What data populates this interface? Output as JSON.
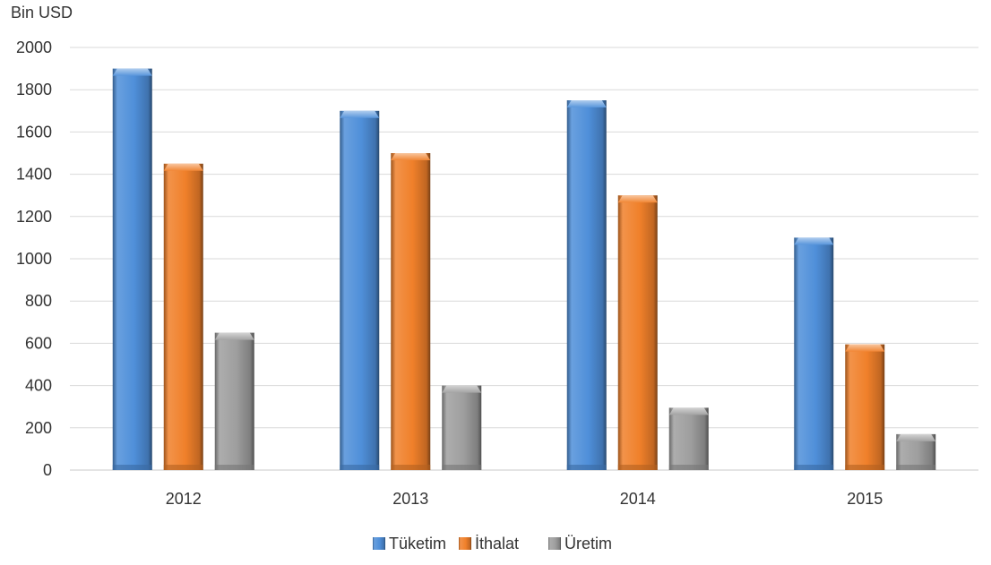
{
  "chart_data": {
    "type": "bar",
    "ylabel": "Bin USD",
    "categories": [
      "2012",
      "2013",
      "2014",
      "2015"
    ],
    "series": [
      {
        "name": "Tüketim",
        "values": [
          1900,
          1700,
          1750,
          1100
        ],
        "color": "#4F8FD9"
      },
      {
        "name": "İthalat",
        "values": [
          1450,
          1500,
          1300,
          595
        ],
        "color": "#F0802A"
      },
      {
        "name": "Üretim",
        "values": [
          650,
          400,
          295,
          170
        ],
        "color": "#9E9E9E"
      }
    ],
    "ylim": [
      0,
      2000
    ],
    "yticks": [
      0,
      200,
      400,
      600,
      800,
      1000,
      1200,
      1400,
      1600,
      1800,
      2000
    ],
    "grid": true,
    "legend": "bottom"
  }
}
